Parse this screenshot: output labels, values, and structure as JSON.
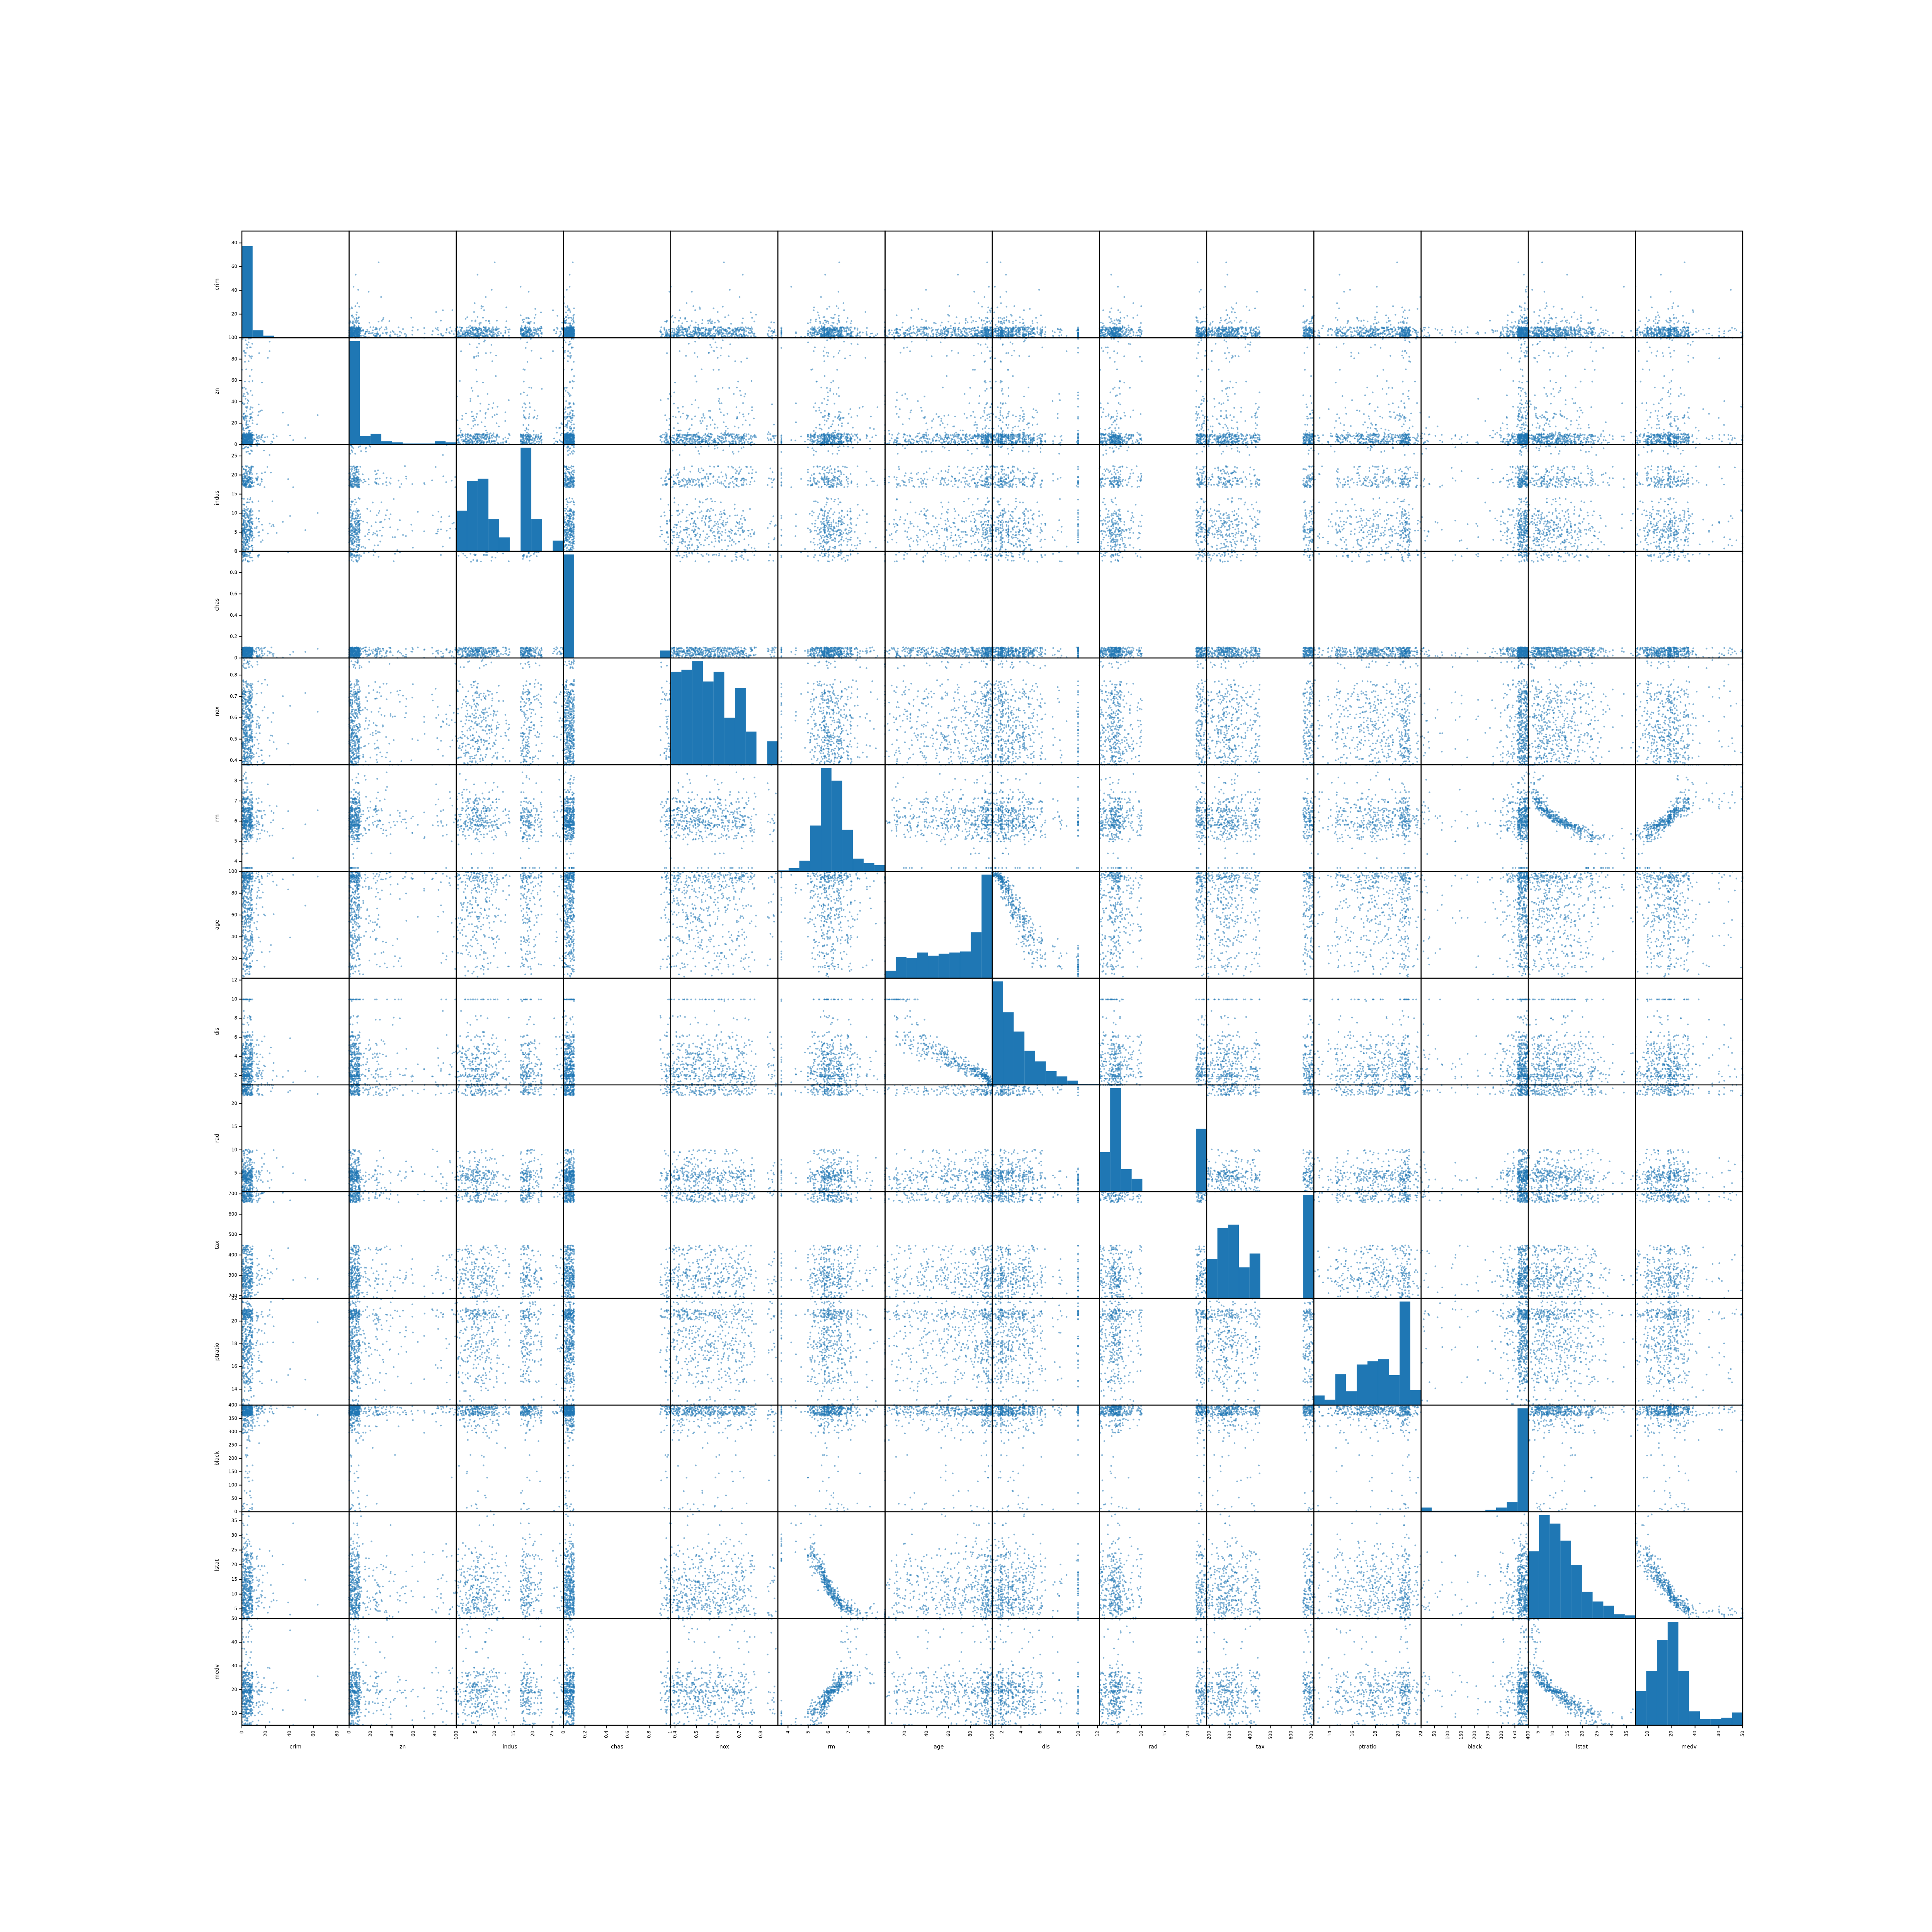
{
  "chart_data": {
    "type": "scatter",
    "kind": "scatter-matrix",
    "colors": {
      "marker": "#1f77b4",
      "frame": "#000000",
      "background": "#ffffff"
    },
    "variables": [
      {
        "name": "crim",
        "range": [
          0,
          90
        ],
        "ticks": [
          0,
          20,
          40,
          60,
          80
        ]
      },
      {
        "name": "zn",
        "range": [
          0,
          100
        ],
        "ticks": [
          0,
          20,
          40,
          60,
          80,
          100
        ]
      },
      {
        "name": "indus",
        "range": [
          0,
          28
        ],
        "ticks": [
          0,
          5,
          10,
          15,
          20,
          25
        ]
      },
      {
        "name": "chas",
        "range": [
          0,
          1
        ],
        "ticks": [
          0.0,
          0.2,
          0.4,
          0.6,
          0.8,
          1.0
        ]
      },
      {
        "name": "nox",
        "range": [
          0.38,
          0.88
        ],
        "ticks": [
          0.4,
          0.5,
          0.6,
          0.7,
          0.8
        ]
      },
      {
        "name": "rm",
        "range": [
          3.5,
          8.8
        ],
        "ticks": [
          4,
          5,
          6,
          7,
          8
        ]
      },
      {
        "name": "age",
        "range": [
          2,
          100
        ],
        "ticks": [
          20,
          40,
          60,
          80,
          100
        ]
      },
      {
        "name": "dis",
        "range": [
          1,
          12.2
        ],
        "ticks": [
          2,
          4,
          6,
          8,
          10,
          12
        ]
      },
      {
        "name": "rad",
        "range": [
          1,
          24
        ],
        "ticks": [
          5,
          10,
          15,
          20
        ]
      },
      {
        "name": "tax",
        "range": [
          187,
          711
        ],
        "ticks": [
          200,
          300,
          400,
          500,
          600,
          700
        ]
      },
      {
        "name": "ptratio",
        "range": [
          12.6,
          22
        ],
        "ticks": [
          14,
          16,
          18,
          20,
          22
        ]
      },
      {
        "name": "black",
        "range": [
          0,
          400
        ],
        "ticks": [
          0,
          50,
          100,
          150,
          200,
          250,
          300,
          350,
          400
        ]
      },
      {
        "name": "lstat",
        "range": [
          1.7,
          38
        ],
        "ticks": [
          5,
          10,
          15,
          20,
          25,
          30,
          35
        ]
      },
      {
        "name": "medv",
        "range": [
          5,
          50
        ],
        "ticks": [
          10,
          20,
          30,
          40,
          50
        ]
      }
    ],
    "histograms": [
      [
        0.86,
        0.07,
        0.02,
        0.005,
        0.003,
        0.002,
        0.002,
        0.001,
        0.001,
        0.001
      ],
      [
        0.97,
        0.08,
        0.1,
        0.03,
        0.02,
        0.01,
        0.01,
        0.01,
        0.03,
        0.02
      ],
      [
        0.38,
        0.66,
        0.68,
        0.3,
        0.13,
        0.0,
        0.97,
        0.3,
        0.0,
        0.1
      ],
      [
        0.97,
        0.0,
        0.0,
        0.0,
        0.0,
        0.0,
        0.0,
        0.0,
        0.0,
        0.07
      ],
      [
        0.87,
        0.89,
        0.97,
        0.78,
        0.87,
        0.44,
        0.72,
        0.31,
        0.0,
        0.22
      ],
      [
        0.01,
        0.03,
        0.1,
        0.43,
        0.97,
        0.85,
        0.39,
        0.12,
        0.08,
        0.06
      ],
      [
        0.07,
        0.2,
        0.19,
        0.24,
        0.21,
        0.23,
        0.24,
        0.25,
        0.43,
        0.97
      ],
      [
        0.97,
        0.68,
        0.5,
        0.32,
        0.22,
        0.13,
        0.08,
        0.04,
        0.01,
        0.01
      ],
      [
        0.37,
        0.97,
        0.21,
        0.12,
        0.0,
        0.0,
        0.0,
        0.0,
        0.0,
        0.59
      ],
      [
        0.37,
        0.66,
        0.69,
        0.29,
        0.42,
        0.0,
        0.0,
        0.0,
        0.0,
        0.97
      ],
      [
        0.09,
        0.05,
        0.29,
        0.13,
        0.38,
        0.41,
        0.43,
        0.28,
        0.97,
        0.14
      ],
      [
        0.04,
        0.01,
        0.01,
        0.01,
        0.01,
        0.01,
        0.02,
        0.04,
        0.09,
        0.97
      ],
      [
        0.63,
        0.97,
        0.89,
        0.73,
        0.5,
        0.25,
        0.16,
        0.12,
        0.04,
        0.03
      ],
      [
        0.32,
        0.51,
        0.8,
        0.97,
        0.51,
        0.13,
        0.06,
        0.06,
        0.07,
        0.12
      ]
    ]
  }
}
